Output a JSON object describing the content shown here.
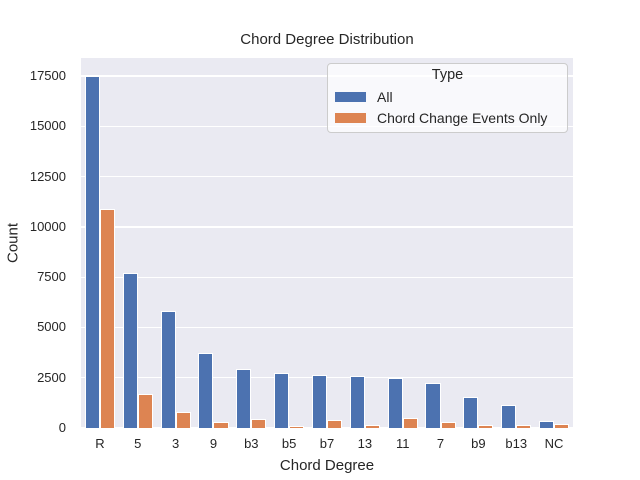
{
  "chart_data": {
    "type": "bar",
    "title": "Chord Degree Distribution",
    "xlabel": "Chord Degree",
    "ylabel": "Count",
    "categories": [
      "R",
      "5",
      "3",
      "9",
      "b3",
      "b5",
      "b7",
      "13",
      "11",
      "7",
      "b9",
      "b13",
      "NC"
    ],
    "series": [
      {
        "name": "All",
        "color": "#4C72B0",
        "values": [
          17500,
          7700,
          5800,
          3720,
          2930,
          2720,
          2620,
          2600,
          2480,
          2260,
          1560,
          1130,
          350
        ]
      },
      {
        "name": "Chord Change Events Only",
        "color": "#DD8452",
        "values": [
          10880,
          1700,
          800,
          320,
          470,
          90,
          390,
          170,
          480,
          280,
          150,
          150,
          200
        ]
      }
    ],
    "ylim": [
      0,
      18400
    ],
    "yticks": [
      0,
      2500,
      5000,
      7500,
      10000,
      12500,
      15000,
      17500
    ],
    "legend_title": "Type",
    "legend_position": "upper right",
    "grid": "horizontal",
    "colors": {
      "plot_background": "#EAEAF2",
      "grid_line": "#FFFFFF",
      "text": "#262626",
      "figure_background": "#FFFFFF"
    }
  }
}
